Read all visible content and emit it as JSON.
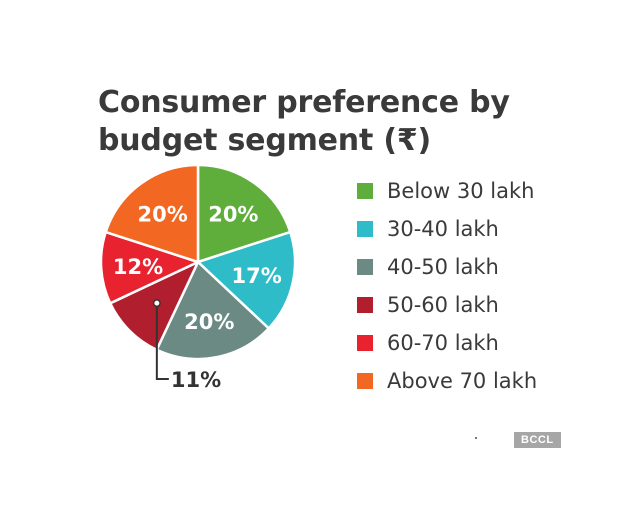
{
  "chart_data": {
    "type": "pie",
    "title_lines": [
      "Consumer preference by",
      "budget segment (₹)"
    ],
    "slices": [
      {
        "label": "Below 30 lakh",
        "value": 20,
        "display": "20%",
        "color": "#5fae3c"
      },
      {
        "label": "30-40 lakh",
        "value": 17,
        "display": "17%",
        "color": "#2ebcc9"
      },
      {
        "label": "40-50 lakh",
        "value": 20,
        "display": "20%",
        "color": "#6a8a83"
      },
      {
        "label": "50-60 lakh",
        "value": 11,
        "display": "11%",
        "color": "#b11f2e"
      },
      {
        "label": "60-70 lakh",
        "value": 12,
        "display": "12%",
        "color": "#e8222e"
      },
      {
        "label": "Above 70 lakh",
        "value": 20,
        "display": "20%",
        "color": "#f26722"
      }
    ]
  },
  "credit": "BCCL"
}
